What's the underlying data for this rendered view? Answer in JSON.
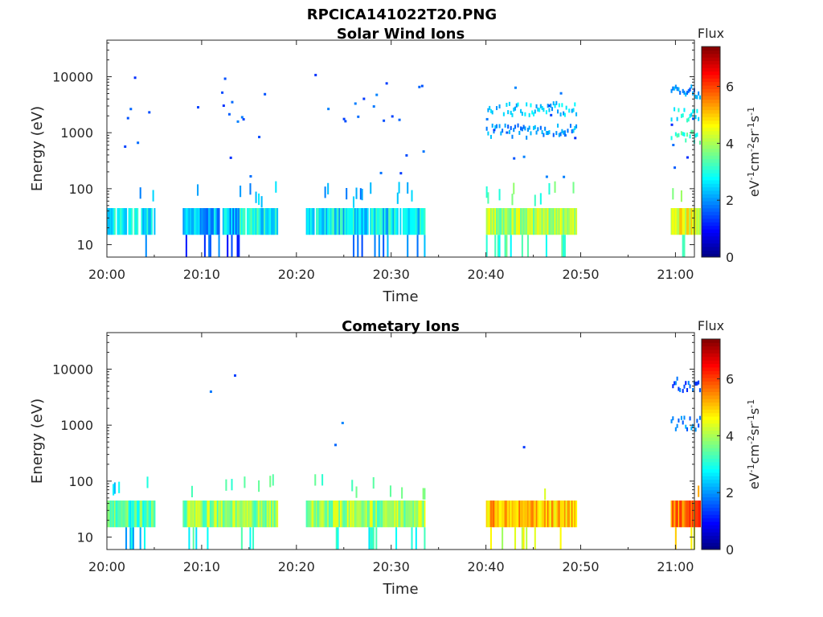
{
  "figure": {
    "title": "RPCICA141022T20.PNG"
  },
  "chart_data": [
    {
      "type": "heatmap",
      "title": "Solar Wind Ions",
      "xlabel": "Time",
      "ylabel": "Energy (eV)",
      "yscale": "log",
      "ylim": [
        6,
        45000
      ],
      "xlim": [
        "20:00",
        "21:02"
      ],
      "xticks": [
        "20:00",
        "20:10",
        "20:20",
        "20:30",
        "20:40",
        "20:50",
        "21:00"
      ],
      "yticks": [
        10,
        100,
        1000,
        10000
      ],
      "ytick_labels": [
        "10",
        "100",
        "1000",
        "10000"
      ],
      "colorbar": {
        "label": "Flux",
        "unit_label": "eV-1cm-2sr-1s-1",
        "range": [
          0,
          7.4
        ],
        "ticks": [
          "0",
          "2",
          "4",
          "6"
        ],
        "colormap": "jet"
      },
      "segments": [
        {
          "start": "20:00",
          "end": "20:05",
          "low_band_flux": 2.7,
          "cover": 0.8
        },
        {
          "start": "20:08",
          "end": "20:14",
          "low_band_flux": 2.3,
          "cover": 0.95
        },
        {
          "start": "20:14",
          "end": "20:18",
          "low_band_flux": 2.8,
          "cover": 0.9
        },
        {
          "start": "20:21",
          "end": "20:33.5",
          "low_band_flux": 2.7,
          "cover": 0.95
        },
        {
          "start": "20:40",
          "end": "20:49.5",
          "low_band_flux": 4.0,
          "cover": 1.0,
          "band_2500_eV_flux": 2.4,
          "band_1000_eV_flux": 2.0
        },
        {
          "start": "20:59.5",
          "end": "21:02.5",
          "low_band_flux": 4.5,
          "cover": 1.0,
          "band_5000_eV_flux": 1.9,
          "band_2000_eV_flux": 2.8,
          "band_800_eV_flux": 3.2
        }
      ]
    },
    {
      "type": "heatmap",
      "title": "Cometary Ions",
      "xlabel": "Time",
      "ylabel": "Energy (eV)",
      "yscale": "log",
      "ylim": [
        6,
        45000
      ],
      "xlim": [
        "20:00",
        "21:02"
      ],
      "xticks": [
        "20:00",
        "20:10",
        "20:20",
        "20:30",
        "20:40",
        "20:50",
        "21:00"
      ],
      "yticks": [
        10,
        100,
        1000,
        10000
      ],
      "ytick_labels": [
        "10",
        "100",
        "1000",
        "10000"
      ],
      "colorbar": {
        "label": "Flux",
        "unit_label": "eV-1cm-2sr-1s-1",
        "range": [
          0,
          7.4
        ],
        "ticks": [
          "0",
          "2",
          "4",
          "6"
        ],
        "colormap": "jet"
      },
      "segments": [
        {
          "start": "20:00",
          "end": "20:05",
          "low_band_flux": 3.3,
          "cover": 1.0
        },
        {
          "start": "20:08",
          "end": "20:18",
          "low_band_flux": 3.8,
          "cover": 1.0
        },
        {
          "start": "20:21",
          "end": "20:33.5",
          "low_band_flux": 3.9,
          "cover": 1.0
        },
        {
          "start": "20:40",
          "end": "20:49.5",
          "low_band_flux": 5.1,
          "cover": 1.0
        },
        {
          "start": "20:59.5",
          "end": "21:02.5",
          "low_band_flux": 5.6,
          "cover": 1.0,
          "band_1000_eV_flux": 1.9,
          "band_5000_eV_flux": 1.5
        }
      ]
    }
  ]
}
